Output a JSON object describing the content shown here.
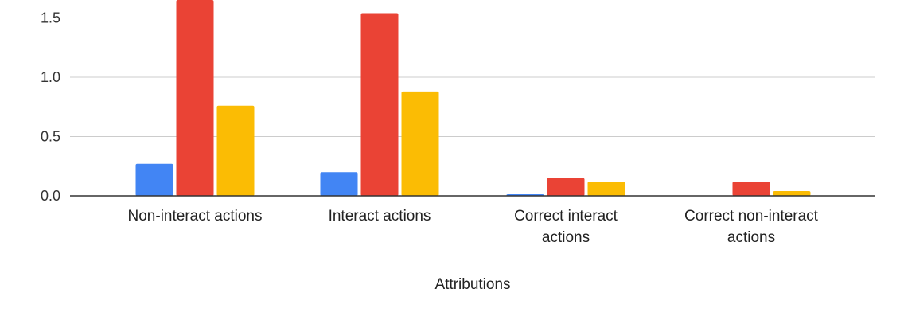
{
  "chart_data": {
    "type": "bar",
    "xlabel": "Attributions",
    "ylabel": "",
    "categories": [
      [
        "Non-interact actions"
      ],
      [
        "Interact actions"
      ],
      [
        "Correct interact",
        "actions"
      ],
      [
        "Correct non-interact",
        "actions"
      ]
    ],
    "y_ticks": [
      "0.0",
      "0.5",
      "1.0",
      "1.5"
    ],
    "ylim": [
      0,
      1.65
    ],
    "grid": true,
    "series": [
      {
        "color": "#4285F4",
        "values": [
          0.27,
          0.2,
          0.01,
          0.0
        ]
      },
      {
        "color": "#EA4335",
        "values": [
          1.7,
          1.54,
          0.15,
          0.12
        ]
      },
      {
        "color": "#FBBC04",
        "values": [
          0.76,
          0.88,
          0.12,
          0.04
        ]
      }
    ]
  }
}
